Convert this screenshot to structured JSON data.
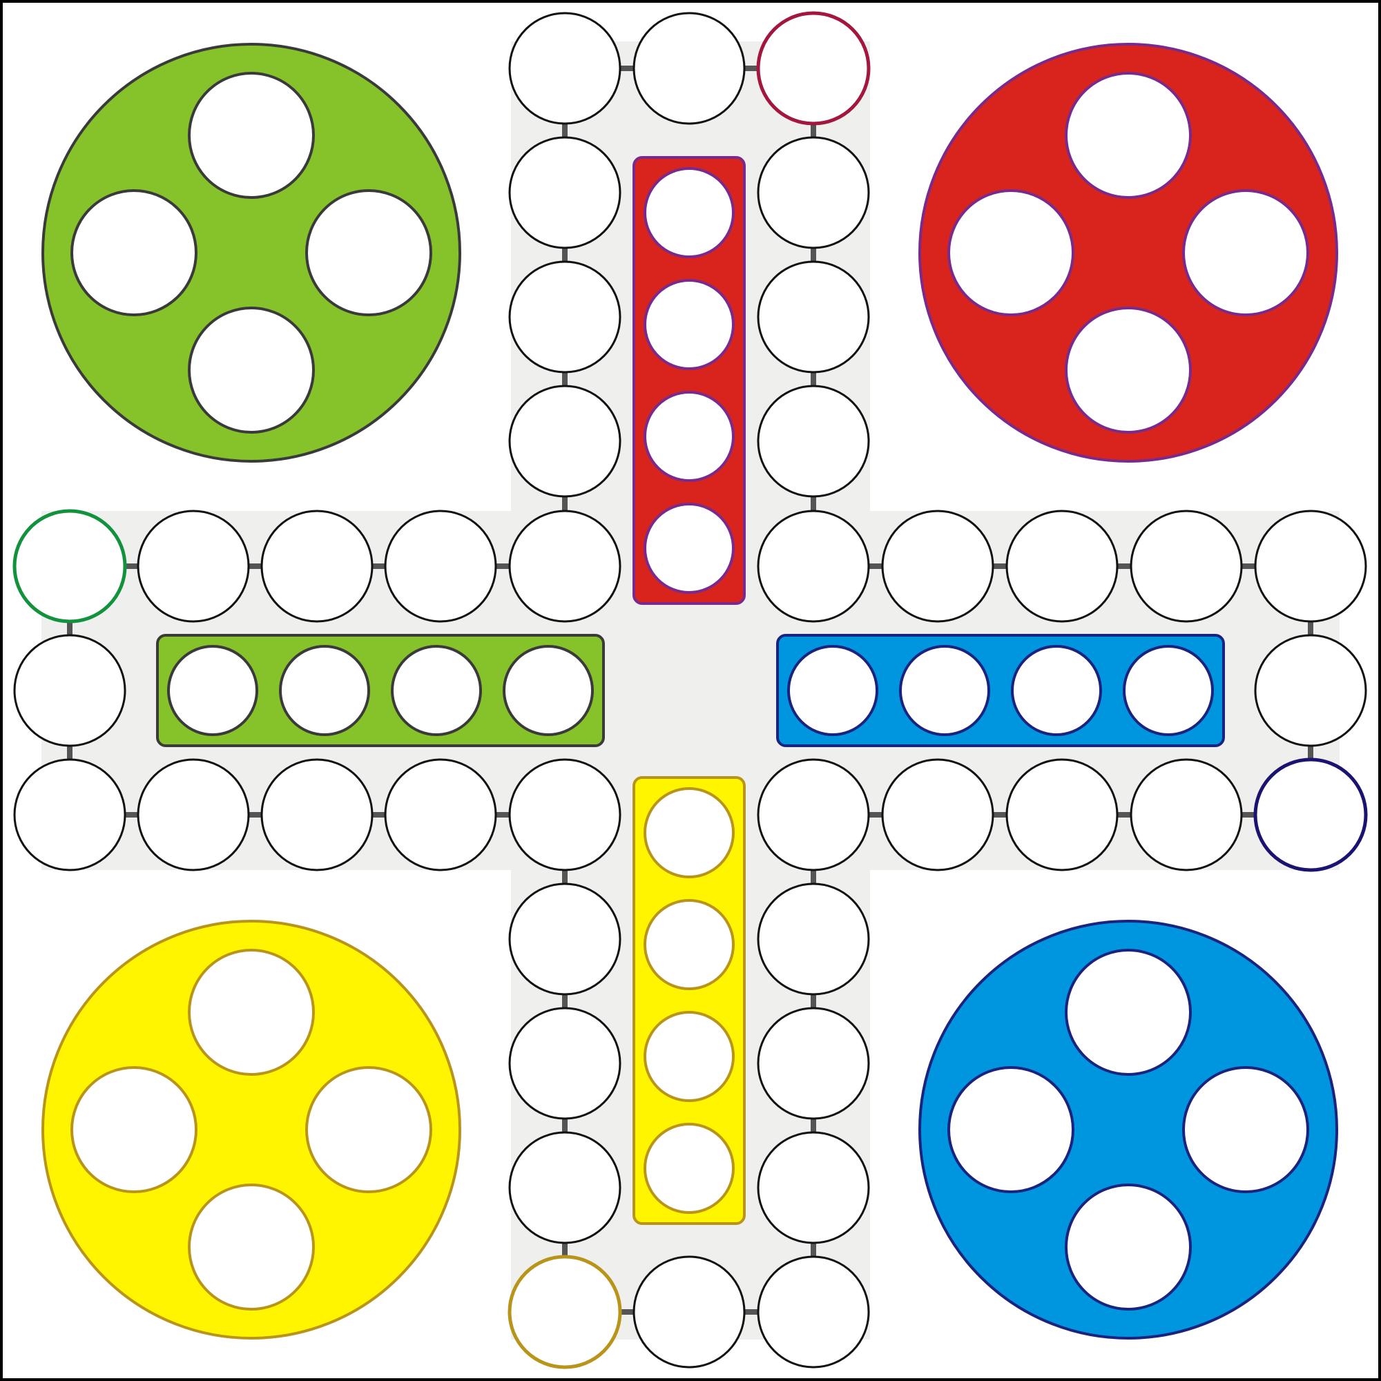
{
  "game": {
    "type": "ludo-board",
    "colors": {
      "background": "#ffffff",
      "frame": "#000000",
      "track_fill": "#efefee",
      "space_fill": "#ffffff",
      "space_stroke": "#111111",
      "connector": "#555555",
      "green": "#86c22a",
      "red": "#d9241d",
      "blue": "#0095df",
      "yellow": "#fff500",
      "green_outline": "#3a3a3a",
      "red_outline": "#7a2a8a",
      "blue_outline": "#1a237e",
      "yellow_outline": "#b8951a",
      "green_start": "#12923c",
      "red_start": "#a3163d",
      "blue_start": "#1a1470",
      "yellow_start": "#b8951a"
    },
    "players": [
      {
        "id": "green",
        "corner": "top-left",
        "home_spots": 4,
        "finish_lane": "left"
      },
      {
        "id": "red",
        "corner": "top-right",
        "home_spots": 4,
        "finish_lane": "top"
      },
      {
        "id": "yellow",
        "corner": "bottom-left",
        "home_spots": 4,
        "finish_lane": "bottom"
      },
      {
        "id": "blue",
        "corner": "bottom-right",
        "home_spots": 4,
        "finish_lane": "right"
      }
    ],
    "track_spaces": 40,
    "finish_spaces_per_player": 4
  }
}
